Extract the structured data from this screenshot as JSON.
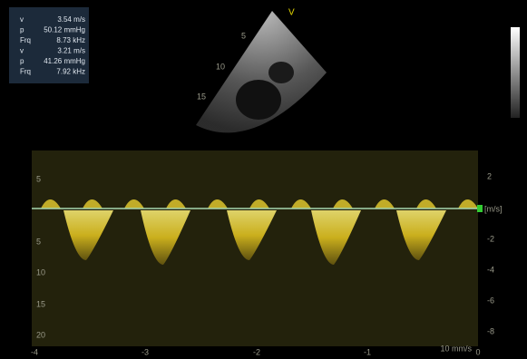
{
  "measurements": [
    {
      "label": "v",
      "value": "3.54 m/s"
    },
    {
      "label": "p",
      "value": "50.12 mmHg"
    },
    {
      "label": "Frq",
      "value": "8.73 kHz"
    },
    {
      "label": "v",
      "value": "3.21 m/s"
    },
    {
      "label": "p",
      "value": "41.26 mmHg"
    },
    {
      "label": "Frq",
      "value": "7.92 kHz"
    }
  ],
  "sector": {
    "marker": "V",
    "depths": [
      "5",
      "10",
      "15"
    ]
  },
  "doppler": {
    "left_scale": [
      "5",
      "5",
      "10",
      "15",
      "20"
    ],
    "right_scale": [
      "2",
      "-2",
      "-4",
      "-6",
      "-8"
    ],
    "unit": "[m/s]",
    "time_scale": [
      "-4",
      "-3",
      "-2",
      "-1",
      "0"
    ],
    "sweep": "10 mm/s"
  }
}
